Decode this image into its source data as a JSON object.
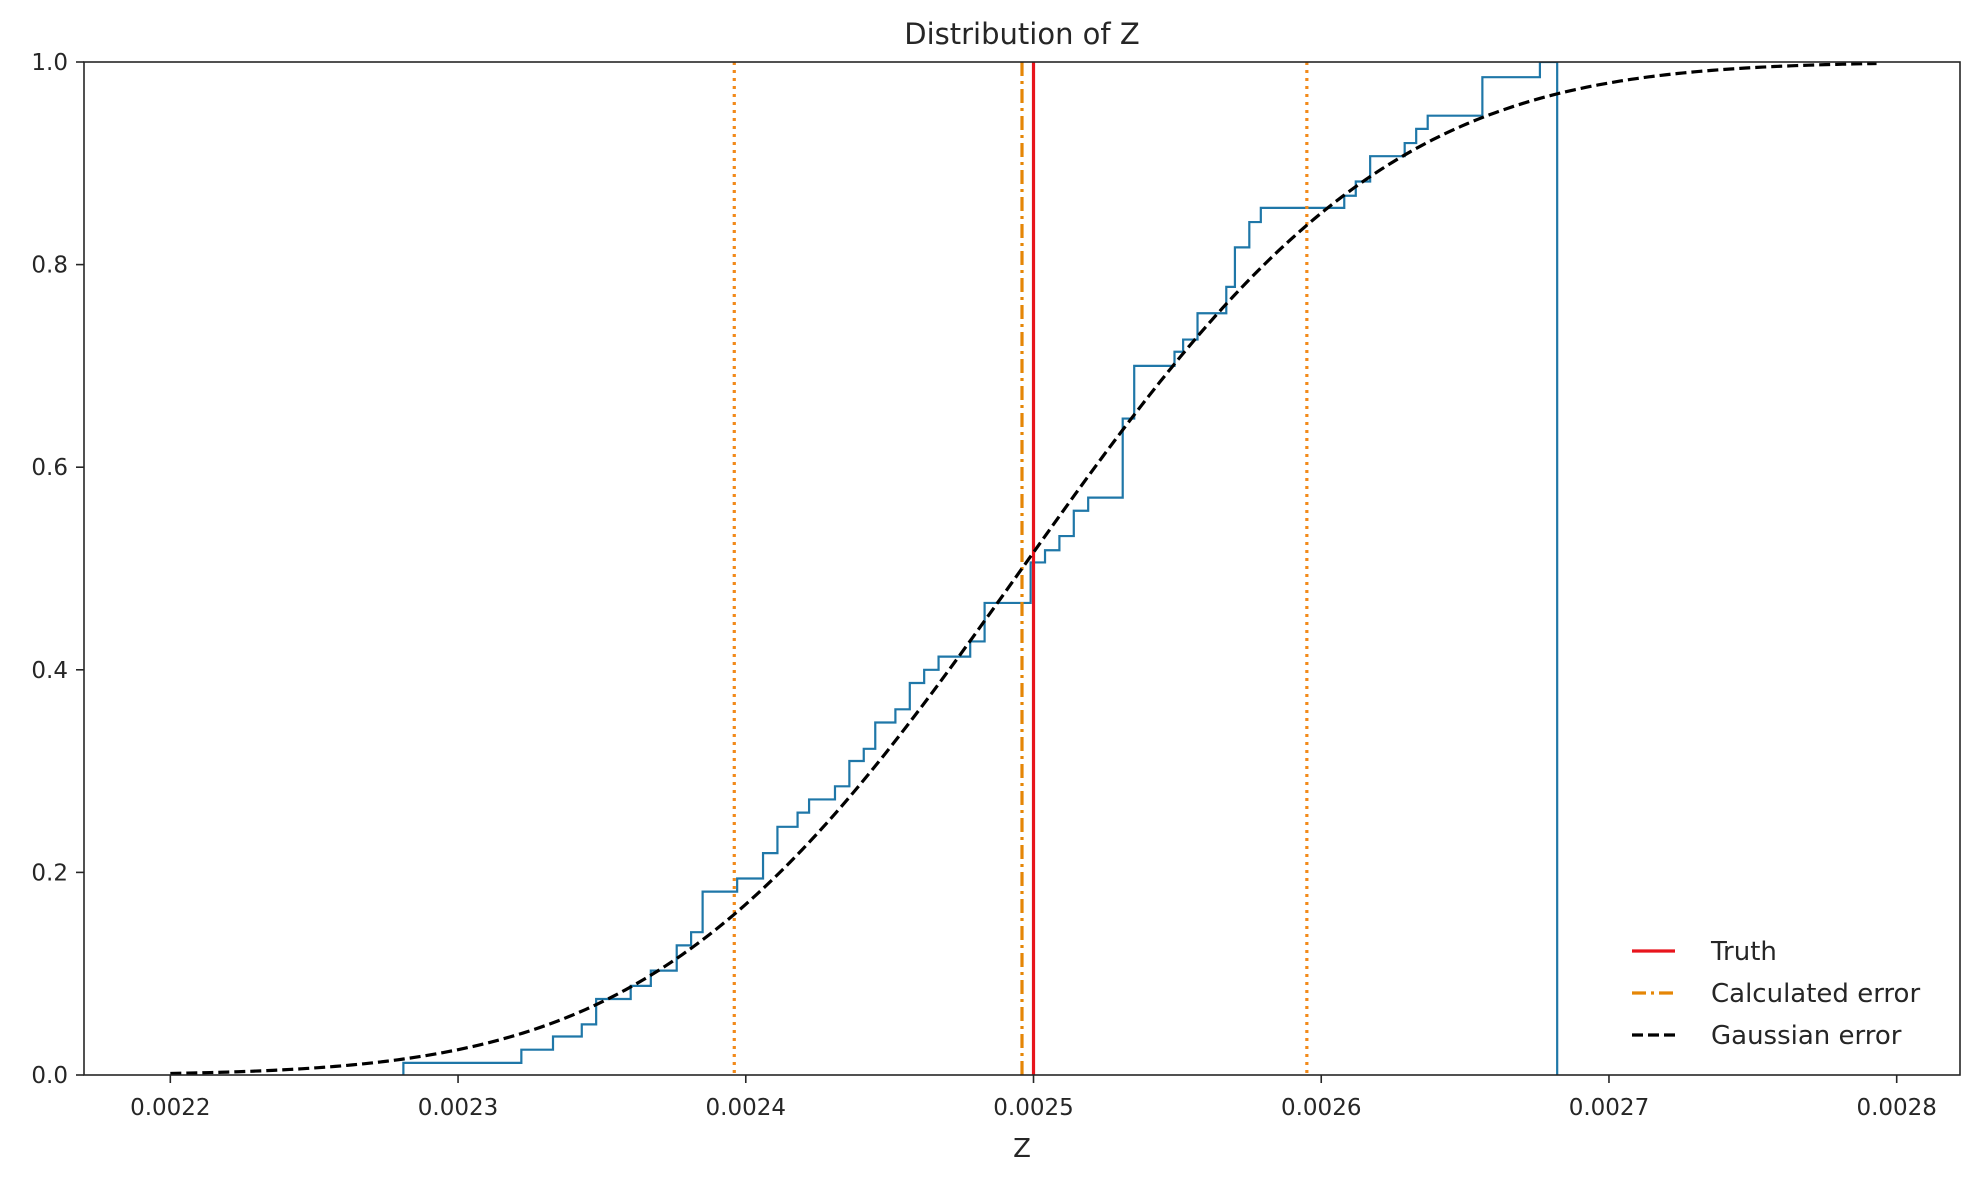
{
  "chart_data": {
    "type": "line",
    "title": "Distribution of Z",
    "xlabel": "Z",
    "ylabel": "",
    "xlim": [
      0.00217,
      0.002822
    ],
    "ylim": [
      0,
      1
    ],
    "xticks": [
      0.0022,
      0.0023,
      0.0024,
      0.0025,
      0.0026,
      0.0027,
      0.0028
    ],
    "xtick_labels": [
      "0.0022",
      "0.0023",
      "0.0024",
      "0.0025",
      "0.0026",
      "0.0027",
      "0.0028"
    ],
    "yticks": [
      0,
      0.2,
      0.4,
      0.6,
      0.8,
      1.0
    ],
    "ytick_labels": [
      "0.0",
      "0.2",
      "0.4",
      "0.6",
      "0.8",
      "1.0"
    ],
    "grid": false,
    "legend_position": "lower-right",
    "series": [
      {
        "name": "Truth",
        "kind": "vline",
        "x": 0.0025,
        "color": "#e8141c",
        "dash": "solid"
      },
      {
        "name": "Calculated error",
        "kind": "vline",
        "x": 0.002496,
        "color": "#e58606",
        "dash": "dashdot"
      },
      {
        "kind": "vline",
        "x": 0.002396,
        "color": "#f28a1a",
        "dash": "dotted"
      },
      {
        "kind": "vline",
        "x": 0.002595,
        "color": "#f28a1a",
        "dash": "dotted"
      },
      {
        "name": "Gaussian error",
        "kind": "cdf",
        "mean": 0.002496,
        "sd": 0.0001,
        "x_range": [
          0.0022,
          0.002793
        ],
        "color": "#000000",
        "dash": "dashed"
      },
      {
        "kind": "ecdf",
        "color": "#1f77a8",
        "dash": "solid",
        "x": [
          0.002281,
          0.002322,
          0.002333,
          0.002343,
          0.002348,
          0.00236,
          0.002367,
          0.002376,
          0.002381,
          0.002385,
          0.002397,
          0.002406,
          0.002411,
          0.002418,
          0.002422,
          0.002431,
          0.002436,
          0.002441,
          0.002445,
          0.002452,
          0.002457,
          0.002462,
          0.002467,
          0.002478,
          0.002483,
          0.002499,
          0.002504,
          0.002509,
          0.002514,
          0.002519,
          0.002531,
          0.002535,
          0.002549,
          0.002552,
          0.002557,
          0.002567,
          0.00257,
          0.002575,
          0.002579,
          0.002584,
          0.002608,
          0.002612,
          0.002617,
          0.002629,
          0.002633,
          0.002637,
          0.002656,
          0.002676
        ],
        "y": [
          0.012,
          0.025,
          0.038,
          0.05,
          0.075,
          0.088,
          0.103,
          0.128,
          0.141,
          0.181,
          0.194,
          0.219,
          0.245,
          0.259,
          0.272,
          0.285,
          0.31,
          0.322,
          0.348,
          0.361,
          0.387,
          0.4,
          0.413,
          0.428,
          0.466,
          0.506,
          0.518,
          0.532,
          0.557,
          0.57,
          0.648,
          0.7,
          0.714,
          0.726,
          0.752,
          0.778,
          0.817,
          0.842,
          0.856,
          0.856,
          0.868,
          0.882,
          0.907,
          0.92,
          0.934,
          0.947,
          0.985,
          1.0
        ],
        "end_x": 0.002682
      }
    ]
  }
}
